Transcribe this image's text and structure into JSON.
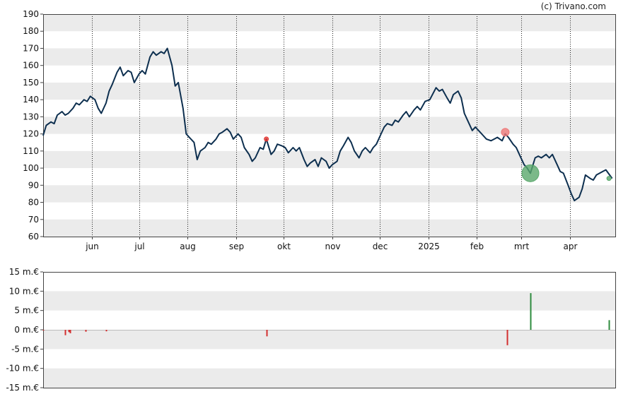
{
  "credit": "(c) Trivano.com",
  "chart_data": [
    {
      "type": "line",
      "title": "",
      "xlabel": "",
      "ylabel": "",
      "ylim": [
        60,
        190
      ],
      "yticks": [
        60,
        70,
        80,
        90,
        100,
        110,
        120,
        130,
        140,
        150,
        160,
        170,
        180,
        190
      ],
      "ytick_labels": [
        "60",
        "70",
        "80",
        "90",
        "100",
        "110",
        "120",
        "130",
        "140",
        "150",
        "160",
        "170",
        "180",
        "190"
      ],
      "x_range": [
        "2024-05-01",
        "2025-04-30"
      ],
      "month_labels": [
        {
          "date": "2024-06-01",
          "label": "jun"
        },
        {
          "date": "2024-07-01",
          "label": "jul"
        },
        {
          "date": "2024-08-01",
          "label": "aug"
        },
        {
          "date": "2024-09-01",
          "label": "sep"
        },
        {
          "date": "2024-10-01",
          "label": "okt"
        },
        {
          "date": "2024-11-01",
          "label": "nov"
        },
        {
          "date": "2024-12-01",
          "label": "dec"
        },
        {
          "date": "2025-01-01",
          "label": "2025"
        },
        {
          "date": "2025-02-01",
          "label": "feb"
        },
        {
          "date": "2025-03-01",
          "label": "mrt"
        },
        {
          "date": "2025-04-01",
          "label": "apr"
        }
      ],
      "grid": "alternating horizontal bands, dotted vertical month lines",
      "line_color": "#0d2f4f",
      "series": [
        {
          "points": [
            [
              "2024-05-01",
              119
            ],
            [
              "2024-05-03",
              125
            ],
            [
              "2024-05-06",
              127
            ],
            [
              "2024-05-08",
              126
            ],
            [
              "2024-05-10",
              131
            ],
            [
              "2024-05-13",
              133
            ],
            [
              "2024-05-15",
              131
            ],
            [
              "2024-05-17",
              132
            ],
            [
              "2024-05-20",
              135
            ],
            [
              "2024-05-22",
              138
            ],
            [
              "2024-05-24",
              137
            ],
            [
              "2024-05-27",
              140
            ],
            [
              "2024-05-29",
              139
            ],
            [
              "2024-05-31",
              142
            ],
            [
              "2024-06-03",
              140
            ],
            [
              "2024-06-05",
              135
            ],
            [
              "2024-06-07",
              132
            ],
            [
              "2024-06-10",
              138
            ],
            [
              "2024-06-12",
              145
            ],
            [
              "2024-06-14",
              149
            ],
            [
              "2024-06-17",
              156
            ],
            [
              "2024-06-19",
              159
            ],
            [
              "2024-06-21",
              154
            ],
            [
              "2024-06-24",
              157
            ],
            [
              "2024-06-26",
              156
            ],
            [
              "2024-06-28",
              150
            ],
            [
              "2024-07-01",
              155
            ],
            [
              "2024-07-03",
              157
            ],
            [
              "2024-07-05",
              155
            ],
            [
              "2024-07-08",
              165
            ],
            [
              "2024-07-10",
              168
            ],
            [
              "2024-07-12",
              166
            ],
            [
              "2024-07-15",
              168
            ],
            [
              "2024-07-17",
              167
            ],
            [
              "2024-07-19",
              170
            ],
            [
              "2024-07-22",
              160
            ],
            [
              "2024-07-24",
              148
            ],
            [
              "2024-07-26",
              150
            ],
            [
              "2024-07-29",
              135
            ],
            [
              "2024-07-31",
              120
            ],
            [
              "2024-08-02",
              118
            ],
            [
              "2024-08-05",
              115
            ],
            [
              "2024-08-07",
              105
            ],
            [
              "2024-08-09",
              110
            ],
            [
              "2024-08-12",
              112
            ],
            [
              "2024-08-14",
              115
            ],
            [
              "2024-08-16",
              114
            ],
            [
              "2024-08-19",
              117
            ],
            [
              "2024-08-21",
              120
            ],
            [
              "2024-08-23",
              121
            ],
            [
              "2024-08-26",
              123
            ],
            [
              "2024-08-28",
              121
            ],
            [
              "2024-08-30",
              117
            ],
            [
              "2024-09-02",
              120
            ],
            [
              "2024-09-04",
              118
            ],
            [
              "2024-09-06",
              112
            ],
            [
              "2024-09-09",
              108
            ],
            [
              "2024-09-11",
              104
            ],
            [
              "2024-09-13",
              106
            ],
            [
              "2024-09-16",
              112
            ],
            [
              "2024-09-18",
              111
            ],
            [
              "2024-09-20",
              117
            ],
            [
              "2024-09-23",
              108
            ],
            [
              "2024-09-25",
              110
            ],
            [
              "2024-09-27",
              114
            ],
            [
              "2024-09-30",
              113
            ],
            [
              "2024-10-02",
              112
            ],
            [
              "2024-10-04",
              109
            ],
            [
              "2024-10-07",
              112
            ],
            [
              "2024-10-09",
              110
            ],
            [
              "2024-10-11",
              112
            ],
            [
              "2024-10-14",
              105
            ],
            [
              "2024-10-16",
              101
            ],
            [
              "2024-10-18",
              103
            ],
            [
              "2024-10-21",
              105
            ],
            [
              "2024-10-23",
              101
            ],
            [
              "2024-10-25",
              106
            ],
            [
              "2024-10-28",
              104
            ],
            [
              "2024-10-30",
              100
            ],
            [
              "2024-11-01",
              102
            ],
            [
              "2024-11-04",
              104
            ],
            [
              "2024-11-06",
              110
            ],
            [
              "2024-11-08",
              113
            ],
            [
              "2024-11-11",
              118
            ],
            [
              "2024-11-13",
              115
            ],
            [
              "2024-11-15",
              110
            ],
            [
              "2024-11-18",
              106
            ],
            [
              "2024-11-20",
              110
            ],
            [
              "2024-11-22",
              112
            ],
            [
              "2024-11-25",
              109
            ],
            [
              "2024-11-27",
              112
            ],
            [
              "2024-11-29",
              114
            ],
            [
              "2024-12-02",
              120
            ],
            [
              "2024-12-04",
              124
            ],
            [
              "2024-12-06",
              126
            ],
            [
              "2024-12-09",
              125
            ],
            [
              "2024-12-11",
              128
            ],
            [
              "2024-12-13",
              127
            ],
            [
              "2024-12-16",
              131
            ],
            [
              "2024-12-18",
              133
            ],
            [
              "2024-12-20",
              130
            ],
            [
              "2024-12-23",
              134
            ],
            [
              "2024-12-25",
              136
            ],
            [
              "2024-12-27",
              134
            ],
            [
              "2024-12-30",
              139
            ],
            [
              "2025-01-02",
              140
            ],
            [
              "2025-01-06",
              147
            ],
            [
              "2025-01-08",
              145
            ],
            [
              "2025-01-10",
              146
            ],
            [
              "2025-01-13",
              141
            ],
            [
              "2025-01-15",
              138
            ],
            [
              "2025-01-17",
              143
            ],
            [
              "2025-01-20",
              145
            ],
            [
              "2025-01-22",
              141
            ],
            [
              "2025-01-24",
              132
            ],
            [
              "2025-01-27",
              126
            ],
            [
              "2025-01-29",
              122
            ],
            [
              "2025-01-31",
              124
            ],
            [
              "2025-02-03",
              121
            ],
            [
              "2025-02-05",
              119
            ],
            [
              "2025-02-07",
              117
            ],
            [
              "2025-02-10",
              116
            ],
            [
              "2025-02-12",
              117
            ],
            [
              "2025-02-14",
              118
            ],
            [
              "2025-02-17",
              116
            ],
            [
              "2025-02-19",
              120
            ],
            [
              "2025-02-21",
              118
            ],
            [
              "2025-02-24",
              114
            ],
            [
              "2025-02-26",
              112
            ],
            [
              "2025-02-28",
              108
            ],
            [
              "2025-03-03",
              102
            ],
            [
              "2025-03-05",
              100
            ],
            [
              "2025-03-07",
              97
            ],
            [
              "2025-03-10",
              106
            ],
            [
              "2025-03-12",
              107
            ],
            [
              "2025-03-14",
              106
            ],
            [
              "2025-03-17",
              108
            ],
            [
              "2025-03-19",
              106
            ],
            [
              "2025-03-21",
              108
            ],
            [
              "2025-03-24",
              102
            ],
            [
              "2025-03-26",
              98
            ],
            [
              "2025-03-28",
              97
            ],
            [
              "2025-03-31",
              90
            ],
            [
              "2025-04-02",
              85
            ],
            [
              "2025-04-04",
              81
            ],
            [
              "2025-04-07",
              83
            ],
            [
              "2025-04-09",
              88
            ],
            [
              "2025-04-11",
              96
            ],
            [
              "2025-04-14",
              94
            ],
            [
              "2025-04-16",
              93
            ],
            [
              "2025-04-18",
              96
            ],
            [
              "2025-04-22",
              98
            ],
            [
              "2025-04-24",
              99
            ],
            [
              "2025-04-28",
              94
            ]
          ]
        }
      ],
      "markers": [
        {
          "date": "2024-09-20",
          "value": 117,
          "color": "#e53935",
          "size": "small"
        },
        {
          "date": "2025-02-19",
          "value": 121,
          "color": "#ef7a7a",
          "size": "medium"
        },
        {
          "date": "2025-03-07",
          "value": 97,
          "color": "#5aa86c",
          "size": "large"
        },
        {
          "date": "2025-04-26",
          "value": 94,
          "color": "#5aa86c",
          "size": "small"
        }
      ]
    },
    {
      "type": "bar",
      "title": "",
      "xlabel": "",
      "ylabel": "",
      "ylim": [
        -15,
        15
      ],
      "yticks": [
        -15,
        -10,
        -5,
        0,
        5,
        10,
        15
      ],
      "ytick_labels": [
        "-15 m.€",
        "-10 m.€",
        "-5 m.€",
        "0 m.€",
        "5 m.€",
        "10 m.€",
        "15 m.€"
      ],
      "x_range": [
        "2024-05-01",
        "2025-04-30"
      ],
      "grid": "alternating horizontal bands",
      "positive_color": "#2e8b3e",
      "negative_color": "#d32f2f",
      "bars": [
        {
          "date": "2024-05-01",
          "value": -0.2
        },
        {
          "date": "2024-05-15",
          "value": -1.4
        },
        {
          "date": "2024-05-17",
          "value": -0.6
        },
        {
          "date": "2024-05-18",
          "value": -0.9
        },
        {
          "date": "2024-05-28",
          "value": -0.5
        },
        {
          "date": "2024-06-10",
          "value": -0.4
        },
        {
          "date": "2024-09-20",
          "value": -1.7
        },
        {
          "date": "2025-02-20",
          "value": -4.0
        },
        {
          "date": "2025-03-07",
          "value": 9.5
        },
        {
          "date": "2025-04-26",
          "value": 2.5
        }
      ]
    }
  ]
}
